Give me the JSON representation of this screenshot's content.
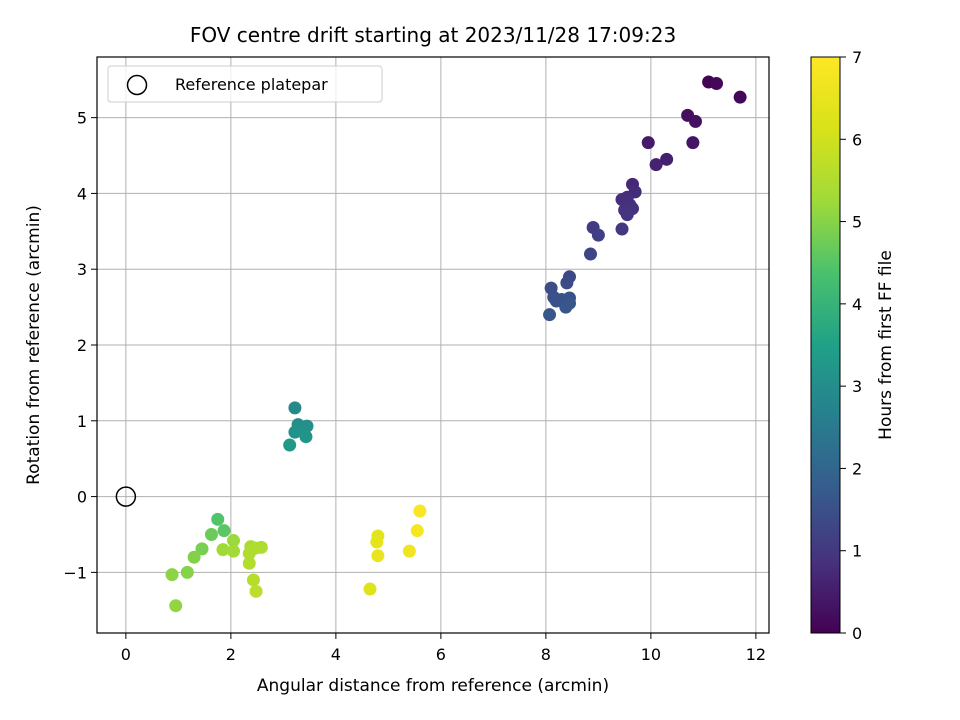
{
  "chart_data": {
    "type": "scatter",
    "title": "FOV centre drift starting at 2023/11/28 17:09:23",
    "xlabel": "Angular distance from reference (arcmin)",
    "ylabel": "Rotation from reference (arcmin)",
    "xlim": [
      -0.55,
      12.25
    ],
    "ylim": [
      -1.8,
      5.8
    ],
    "xticks": [
      0,
      2,
      4,
      6,
      8,
      10,
      12
    ],
    "yticks": [
      -1,
      0,
      1,
      2,
      3,
      4,
      5
    ],
    "grid": true,
    "legend": {
      "placement": "top-left",
      "label": "Reference platepar"
    },
    "reference_point": {
      "x": 0,
      "y": 0
    },
    "colorbar": {
      "label": "Hours from first FF file",
      "range": [
        0,
        7
      ],
      "ticks": [
        0,
        1,
        2,
        3,
        4,
        5,
        6,
        7
      ],
      "colormap": "viridis"
    },
    "points": [
      {
        "x": 11.1,
        "y": 5.47,
        "h": 0.05
      },
      {
        "x": 11.25,
        "y": 5.45,
        "h": 0.1
      },
      {
        "x": 11.7,
        "y": 5.27,
        "h": 0.12
      },
      {
        "x": 10.7,
        "y": 5.03,
        "h": 0.25
      },
      {
        "x": 10.85,
        "y": 4.95,
        "h": 0.3
      },
      {
        "x": 10.8,
        "y": 4.67,
        "h": 0.35
      },
      {
        "x": 9.95,
        "y": 4.67,
        "h": 0.45
      },
      {
        "x": 10.3,
        "y": 4.45,
        "h": 0.55
      },
      {
        "x": 10.1,
        "y": 4.38,
        "h": 0.6
      },
      {
        "x": 9.65,
        "y": 4.12,
        "h": 0.7
      },
      {
        "x": 9.7,
        "y": 4.02,
        "h": 0.75
      },
      {
        "x": 9.55,
        "y": 3.95,
        "h": 0.8
      },
      {
        "x": 9.45,
        "y": 3.92,
        "h": 0.82
      },
      {
        "x": 9.6,
        "y": 3.85,
        "h": 0.85
      },
      {
        "x": 9.5,
        "y": 3.78,
        "h": 0.88
      },
      {
        "x": 9.65,
        "y": 3.8,
        "h": 0.9
      },
      {
        "x": 9.55,
        "y": 3.72,
        "h": 0.92
      },
      {
        "x": 9.45,
        "y": 3.53,
        "h": 1.0
      },
      {
        "x": 8.9,
        "y": 3.55,
        "h": 1.1
      },
      {
        "x": 9.0,
        "y": 3.45,
        "h": 1.15
      },
      {
        "x": 8.85,
        "y": 3.2,
        "h": 1.25
      },
      {
        "x": 8.45,
        "y": 2.9,
        "h": 1.35
      },
      {
        "x": 8.4,
        "y": 2.82,
        "h": 1.4
      },
      {
        "x": 8.1,
        "y": 2.75,
        "h": 1.45
      },
      {
        "x": 8.15,
        "y": 2.63,
        "h": 1.5
      },
      {
        "x": 8.2,
        "y": 2.58,
        "h": 1.52
      },
      {
        "x": 8.3,
        "y": 2.6,
        "h": 1.55
      },
      {
        "x": 8.45,
        "y": 2.62,
        "h": 1.57
      },
      {
        "x": 8.45,
        "y": 2.55,
        "h": 1.6
      },
      {
        "x": 8.38,
        "y": 2.5,
        "h": 1.62
      },
      {
        "x": 8.07,
        "y": 2.4,
        "h": 1.65
      },
      {
        "x": 3.22,
        "y": 1.17,
        "h": 2.9
      },
      {
        "x": 3.28,
        "y": 0.95,
        "h": 3.0
      },
      {
        "x": 3.45,
        "y": 0.93,
        "h": 3.05
      },
      {
        "x": 3.35,
        "y": 0.88,
        "h": 3.1
      },
      {
        "x": 3.22,
        "y": 0.85,
        "h": 3.15
      },
      {
        "x": 3.43,
        "y": 0.79,
        "h": 3.2
      },
      {
        "x": 3.12,
        "y": 0.68,
        "h": 3.3
      },
      {
        "x": 1.75,
        "y": -0.3,
        "h": 4.45
      },
      {
        "x": 1.87,
        "y": -0.45,
        "h": 4.55
      },
      {
        "x": 1.63,
        "y": -0.5,
        "h": 4.7
      },
      {
        "x": 1.45,
        "y": -0.69,
        "h": 4.85
      },
      {
        "x": 1.3,
        "y": -0.8,
        "h": 4.95
      },
      {
        "x": 1.17,
        "y": -1.0,
        "h": 5.0
      },
      {
        "x": 0.88,
        "y": -1.03,
        "h": 5.05
      },
      {
        "x": 0.95,
        "y": -1.44,
        "h": 5.1
      },
      {
        "x": 2.05,
        "y": -0.58,
        "h": 5.2
      },
      {
        "x": 1.85,
        "y": -0.7,
        "h": 5.25
      },
      {
        "x": 2.05,
        "y": -0.72,
        "h": 5.3
      },
      {
        "x": 2.38,
        "y": -0.66,
        "h": 5.4
      },
      {
        "x": 2.58,
        "y": -0.67,
        "h": 5.45
      },
      {
        "x": 2.47,
        "y": -0.68,
        "h": 5.48
      },
      {
        "x": 2.35,
        "y": -0.75,
        "h": 5.5
      },
      {
        "x": 2.35,
        "y": -0.88,
        "h": 5.55
      },
      {
        "x": 2.43,
        "y": -1.1,
        "h": 5.6
      },
      {
        "x": 2.48,
        "y": -1.25,
        "h": 5.65
      },
      {
        "x": 4.65,
        "y": -1.22,
        "h": 6.3
      },
      {
        "x": 4.8,
        "y": -0.52,
        "h": 6.4
      },
      {
        "x": 4.78,
        "y": -0.6,
        "h": 6.45
      },
      {
        "x": 4.8,
        "y": -0.78,
        "h": 6.5
      },
      {
        "x": 5.4,
        "y": -0.72,
        "h": 6.7
      },
      {
        "x": 5.55,
        "y": -0.45,
        "h": 6.8
      },
      {
        "x": 5.6,
        "y": -0.19,
        "h": 6.9
      }
    ]
  }
}
